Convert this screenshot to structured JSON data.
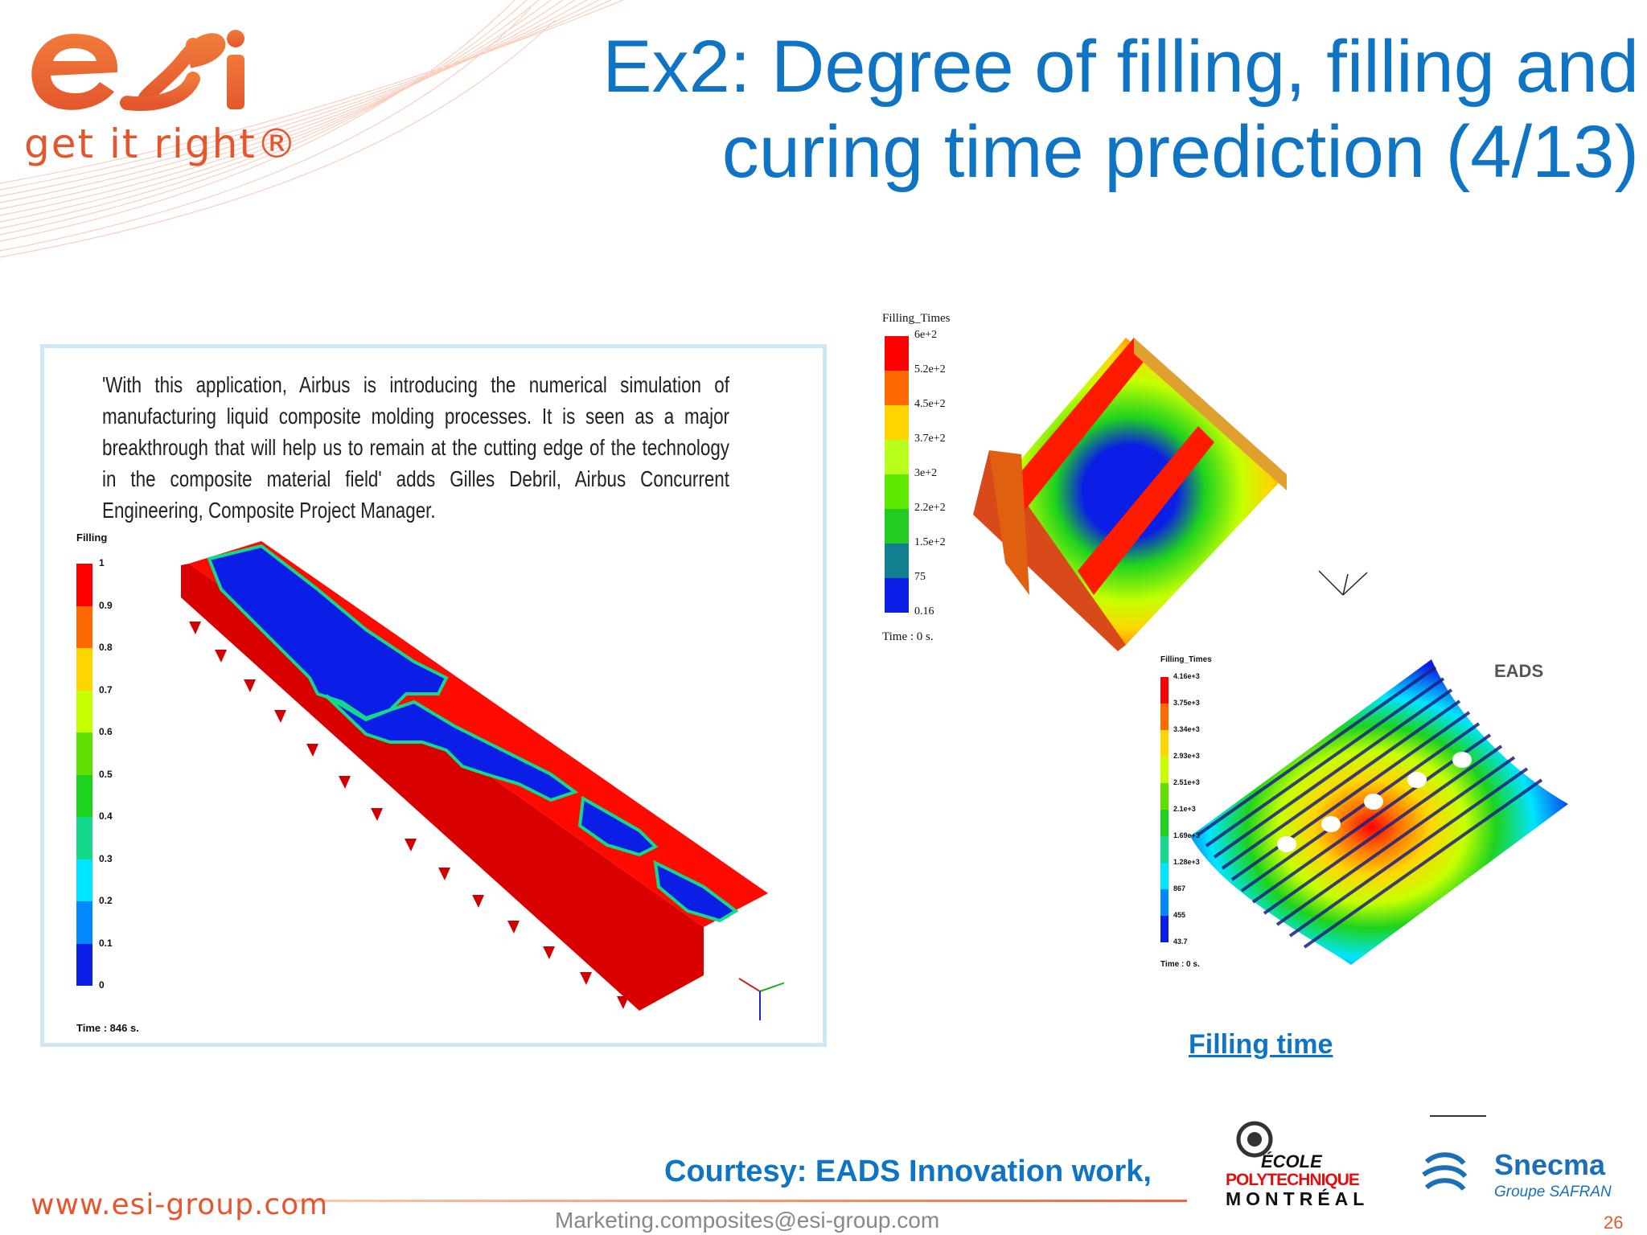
{
  "header": {
    "title_line1": "Ex2: Degree of filling, filling and",
    "title_line2": "curing time prediction (4/13)",
    "logo_tagline": "get it right®"
  },
  "left_panel": {
    "quote": "'With this application, Airbus is introducing the numerical simulation of manufacturing liquid composite molding processes. It is seen as a major breakthrough that will help us to remain at the cutting edge of the technology in the composite material field' adds Gilles Debril, Airbus Concurrent Engineering, Composite Project Manager.",
    "legend_title": "Filling",
    "legend_ticks": [
      "1",
      "0.9",
      "0.8",
      "0.7",
      "0.6",
      "0.5",
      "0.4",
      "0.3",
      "0.2",
      "0.1",
      "0"
    ],
    "legend_colors": [
      "#ff0000",
      "#ff6a00",
      "#ffd500",
      "#c6ff00",
      "#5fe000",
      "#1ed31e",
      "#14d98a",
      "#00e5ff",
      "#0088ff",
      "#0a1ee6"
    ],
    "time": "Time : 846 s."
  },
  "right_top": {
    "legend_title": "Filling_Times",
    "legend_ticks": [
      "6e+2",
      "5.2e+2",
      "4.5e+2",
      "3.7e+2",
      "3e+2",
      "2.2e+2",
      "1.5e+2",
      "75",
      "0.16"
    ],
    "legend_colors": [
      "#ff0000",
      "#ff6a00",
      "#ffd500",
      "#b8ff1e",
      "#5fe800",
      "#22cc22",
      "#117f90",
      "#0a1ee6"
    ],
    "time": "Time : 0 s."
  },
  "right_bottom": {
    "legend_title": "Filling_Times",
    "legend_ticks": [
      "4.16e+3",
      "3.75e+3",
      "3.34e+3",
      "2.93e+3",
      "2.51e+3",
      "2.1e+3",
      "1.69e+3",
      "1.28e+3",
      "867",
      "455",
      "43.7"
    ],
    "legend_colors": [
      "#ff0000",
      "#ff6a00",
      "#ffd500",
      "#c6ff00",
      "#5fe000",
      "#1ed31e",
      "#14d98a",
      "#00e5ff",
      "#0088ff",
      "#0a1ee6"
    ],
    "time": "Time : 0 s.",
    "brand": "EADS"
  },
  "caption": "Filling time",
  "footer": {
    "courtesy": "Courtesy: EADS Innovation work,",
    "website": "www.esi-group.com",
    "email": "Marketing.composites@esi-group.com",
    "page_number": "26",
    "poly_ecole": "ÉCOLE",
    "poly_name": "POLYTECHNIQUE",
    "poly_city": "MONTRÉAL",
    "snecma_name": "Snecma",
    "snecma_group": "Groupe SAFRAN"
  },
  "colors": {
    "accent_blue": "#0f74c4",
    "brand_orange": "#e4572e"
  }
}
